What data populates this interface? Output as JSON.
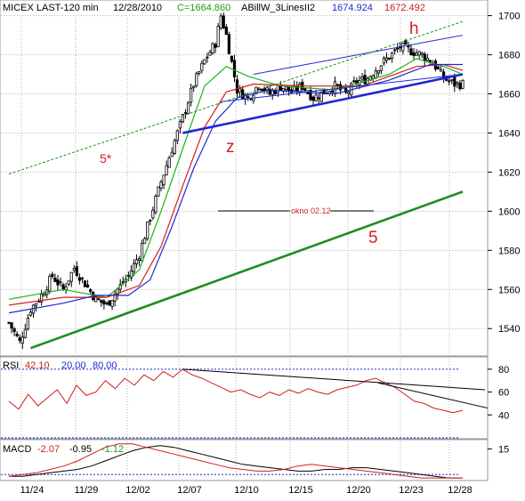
{
  "header": {
    "symbol": "MICEX LAST-120 min",
    "date": "12/28/2010",
    "close": "C=1664.860",
    "indicator": "ABillW_3LinesII2",
    "v1": "1674.924",
    "v2": "1672.492",
    "v1_color": "#1a2ec8",
    "v2_color": "#c81e1e"
  },
  "rsi_header": {
    "name": "RSI",
    "value": "42.10",
    "lo": "20.00",
    "hi": "80.00"
  },
  "macd_header": {
    "name": "MACD",
    "a": "-2.07",
    "b": "-0.95",
    "c": "-1.12"
  },
  "annotations": {
    "h": "h",
    "z": "z",
    "five_star": "5*",
    "five": "5",
    "okno": "okno 02.12"
  },
  "chart_data": [
    {
      "type": "candlestick",
      "name": "price",
      "x_tick_labels": [
        "11/24",
        "11/29",
        "12/02",
        "12/07",
        "12/10",
        "12/15",
        "12/20",
        "12/23",
        "12/28"
      ],
      "y_ticks": [
        1540,
        1560,
        1580,
        1600,
        1620,
        1640,
        1660,
        1680,
        1700
      ],
      "ylim": [
        1526,
        1708
      ],
      "grid": true,
      "close_path": [
        [
          0,
          1543
        ],
        [
          4,
          1533
        ],
        [
          8,
          1550
        ],
        [
          12,
          1557
        ],
        [
          16,
          1567
        ],
        [
          20,
          1560
        ],
        [
          24,
          1571
        ],
        [
          28,
          1563
        ],
        [
          32,
          1555
        ],
        [
          36,
          1552
        ],
        [
          40,
          1560
        ],
        [
          44,
          1567
        ],
        [
          48,
          1578
        ],
        [
          52,
          1597
        ],
        [
          56,
          1615
        ],
        [
          60,
          1632
        ],
        [
          64,
          1648
        ],
        [
          68,
          1665
        ],
        [
          72,
          1677
        ],
        [
          76,
          1686
        ],
        [
          78,
          1700
        ],
        [
          80,
          1690
        ],
        [
          84,
          1662
        ],
        [
          88,
          1658
        ],
        [
          92,
          1665
        ],
        [
          96,
          1660
        ],
        [
          100,
          1664
        ],
        [
          104,
          1661
        ],
        [
          108,
          1664
        ],
        [
          112,
          1658
        ],
        [
          116,
          1661
        ],
        [
          120,
          1664
        ],
        [
          124,
          1660
        ],
        [
          128,
          1666
        ],
        [
          132,
          1668
        ],
        [
          136,
          1674
        ],
        [
          140,
          1679
        ],
        [
          144,
          1684
        ],
        [
          148,
          1682
        ],
        [
          152,
          1680
        ],
        [
          156,
          1676
        ],
        [
          160,
          1668
        ],
        [
          164,
          1665
        ],
        [
          167,
          1665
        ]
      ],
      "moving_averages": [
        {
          "color": "#18b418",
          "points": [
            [
              0,
              1555
            ],
            [
              20,
              1560
            ],
            [
              36,
              1556
            ],
            [
              48,
              1570
            ],
            [
              56,
              1600
            ],
            [
              64,
              1632
            ],
            [
              72,
              1664
            ],
            [
              80,
              1674
            ],
            [
              88,
              1669
            ],
            [
              100,
              1664
            ],
            [
              120,
              1662
            ],
            [
              140,
              1670
            ],
            [
              150,
              1678
            ],
            [
              160,
              1674
            ],
            [
              167,
              1670
            ]
          ]
        },
        {
          "color": "#d21e1e",
          "points": [
            [
              0,
              1552
            ],
            [
              20,
              1556
            ],
            [
              36,
              1556
            ],
            [
              48,
              1562
            ],
            [
              56,
              1582
            ],
            [
              64,
              1613
            ],
            [
              72,
              1643
            ],
            [
              80,
              1661
            ],
            [
              90,
              1665
            ],
            [
              110,
              1664
            ],
            [
              130,
              1664
            ],
            [
              150,
              1674
            ],
            [
              160,
              1675
            ],
            [
              167,
              1672
            ]
          ]
        },
        {
          "color": "#1e28d2",
          "points": [
            [
              0,
              1548
            ],
            [
              20,
              1553
            ],
            [
              32,
              1557
            ],
            [
              44,
              1557
            ],
            [
              52,
              1565
            ],
            [
              60,
              1592
            ],
            [
              68,
              1622
            ],
            [
              76,
              1646
            ],
            [
              84,
              1658
            ],
            [
              96,
              1662
            ],
            [
              120,
              1660
            ],
            [
              140,
              1667
            ],
            [
              155,
              1675
            ],
            [
              167,
              1675
            ]
          ]
        }
      ],
      "trend_lines": [
        {
          "color": "#1e28d2",
          "from": [
            64,
            1640
          ],
          "to": [
            167,
            1670
          ]
        },
        {
          "color": "#1e28d2",
          "from": [
            90,
            1670
          ],
          "to": [
            167,
            1690
          ]
        },
        {
          "color": "#1e28d2",
          "from": [
            78,
            1656
          ],
          "to": [
            167,
            1670
          ]
        },
        {
          "color": "#218c21",
          "from": [
            8,
            1530
          ],
          "to": [
            167,
            1610
          ]
        },
        {
          "color": "#218c21",
          "dashed": true,
          "from": [
            0,
            1619
          ],
          "to": [
            167,
            1697
          ]
        }
      ]
    },
    {
      "type": "line",
      "name": "RSI",
      "ylim": [
        20,
        90
      ],
      "y_ticks": [
        40,
        60,
        80
      ],
      "levels": [
        20,
        80
      ],
      "values": [
        52,
        45,
        58,
        48,
        55,
        62,
        50,
        66,
        57,
        60,
        70,
        63,
        72,
        66,
        75,
        70,
        78,
        73,
        80,
        75,
        72,
        68,
        64,
        60,
        62,
        58,
        55,
        60,
        57,
        62,
        59,
        63,
        60,
        58,
        62,
        64,
        66,
        70,
        72,
        68,
        64,
        58,
        52,
        50,
        46,
        44,
        42,
        44
      ]
    },
    {
      "type": "line",
      "name": "MACD",
      "ylim": [
        -3,
        20
      ],
      "y_ticks": [
        15
      ],
      "series": [
        {
          "name": "main",
          "color": "#000000",
          "values": [
            -1,
            -1,
            0,
            1,
            2,
            3,
            5,
            8,
            11,
            14,
            16,
            17,
            16,
            14,
            12,
            10,
            8,
            6,
            5,
            4,
            3,
            2,
            2,
            3,
            3,
            4,
            4,
            3,
            2,
            1,
            0,
            -1,
            -2,
            -2
          ]
        },
        {
          "name": "signal",
          "color": "#d21e1e",
          "values": [
            -1,
            0,
            1,
            3,
            5,
            8,
            12,
            16,
            18,
            18,
            16,
            14,
            12,
            10,
            8,
            6,
            4,
            3,
            2,
            2,
            3,
            5,
            6,
            5,
            4,
            3,
            2,
            1,
            0,
            -1,
            -2,
            -2,
            -2,
            -2
          ]
        }
      ]
    }
  ]
}
